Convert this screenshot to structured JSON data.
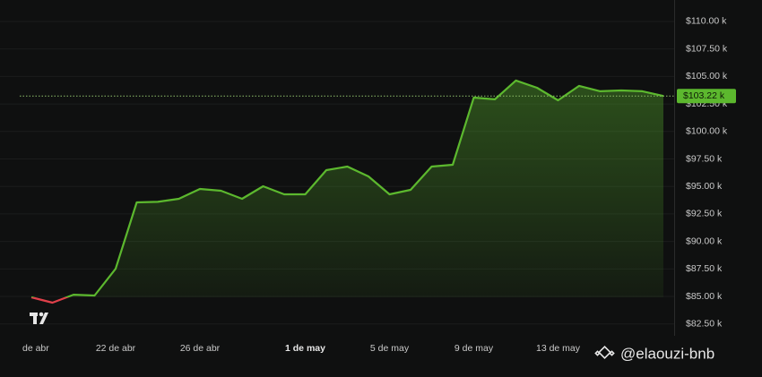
{
  "chart_data": {
    "type": "line",
    "categories": [
      "de abr",
      null,
      null,
      null,
      "22 de abr",
      null,
      null,
      null,
      "26 de abr",
      null,
      null,
      null,
      null,
      "1 de may",
      null,
      null,
      null,
      "5 de may",
      null,
      null,
      null,
      "9 de may",
      null,
      null,
      null,
      "13 de may",
      null,
      null,
      null,
      null,
      null
    ],
    "series": [
      {
        "color": "#5cb82e",
        "down_color": "#e0404a",
        "values": [
          84920,
          84430,
          85160,
          85080,
          87520,
          93550,
          93600,
          93880,
          94770,
          94610,
          93880,
          95020,
          94280,
          94280,
          96480,
          96810,
          95910,
          94280,
          94690,
          96810,
          96970,
          103080,
          102920,
          104630,
          103970,
          102830,
          104140,
          103650,
          103730,
          103650,
          103220
        ]
      }
    ],
    "ylim": [
      81420,
      111950
    ],
    "yticks": [
      {
        "value": 82500,
        "label": "$82.50 k"
      },
      {
        "value": 85000,
        "label": "$85.00 k"
      },
      {
        "value": 87500,
        "label": "$87.50 k"
      },
      {
        "value": 90000,
        "label": "$90.00 k"
      },
      {
        "value": 92500,
        "label": "$92.50 k"
      },
      {
        "value": 95000,
        "label": "$95.00 k"
      },
      {
        "value": 97500,
        "label": "$97.50 k"
      },
      {
        "value": 100000,
        "label": "$100.00 k"
      },
      {
        "value": 102500,
        "label": "$102.50 k"
      },
      {
        "value": 105000,
        "label": "$105.00 k"
      },
      {
        "value": 107500,
        "label": "$107.50 k"
      },
      {
        "value": 110000,
        "label": "$110.00 k"
      }
    ],
    "grid": true,
    "price_line": {
      "value": 103220,
      "label": "$103.22 k"
    },
    "watermark": "@elaouzi-bnb"
  }
}
